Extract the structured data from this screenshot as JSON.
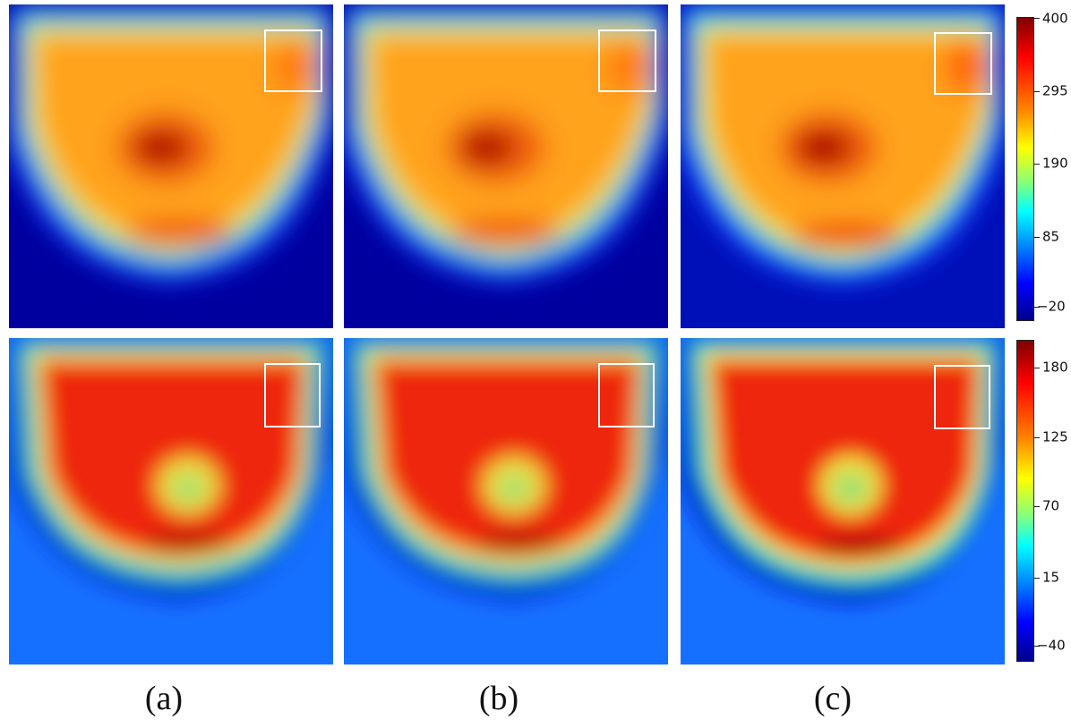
{
  "figure": {
    "rows": [
      {
        "colormap": "jet",
        "colorbar": {
          "ticks": [
            "400",
            "295",
            "190",
            "85",
            "−20"
          ],
          "min": -35,
          "max": 400
        },
        "panels": [
          "a",
          "b",
          "c"
        ]
      },
      {
        "colormap": "jet",
        "colorbar": {
          "ticks": [
            "180",
            "125",
            "70",
            "15",
            "−40"
          ],
          "min": -50,
          "max": 205
        },
        "panels": [
          "a",
          "b",
          "c"
        ]
      }
    ],
    "captions": [
      "(a)",
      "(b)",
      "(c)"
    ],
    "highlight_box_color": "#ffffff"
  }
}
